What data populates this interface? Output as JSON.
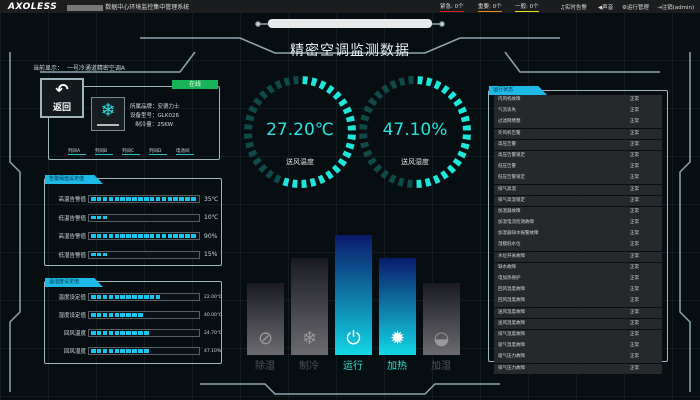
{
  "topbar": {
    "logo": "AXOLESS",
    "system_name": "数据中心环境监控集中管理系统",
    "alarms": [
      {
        "label": "紧急: 0个",
        "color": "#e01b1b"
      },
      {
        "label": "重要: 0个",
        "color": "#e98a16"
      },
      {
        "label": "一般: 0个",
        "color": "#e8dd17"
      }
    ],
    "nav": [
      "♫实时告警",
      "◀声音",
      "⚙运行管理",
      "⇥注销(admin)"
    ]
  },
  "title": "精密空调监测数据",
  "current": {
    "label": "当前显示：",
    "value": "一号冷通道精密空调A"
  },
  "device": {
    "back": "返回",
    "status": "在线",
    "status_color": "#19b35a",
    "brand_label": "所属品牌：",
    "brand": "安德力士",
    "model_label": "设备型号：",
    "model": "GLK026",
    "cap_label": "制冷量：",
    "capacity": "25KW",
    "tags": [
      "列间A",
      "列间B",
      "列间C",
      "列间D",
      "电池间"
    ]
  },
  "alarm_panel": {
    "title": "告警阈值设定值",
    "rows": [
      {
        "label": "高温告警值",
        "value": "35℃",
        "fill": 0.95
      },
      {
        "label": "低温告警值",
        "value": "10℃",
        "fill": 0.17
      },
      {
        "label": "高湿告警值",
        "value": "90%",
        "fill": 0.95
      },
      {
        "label": "低湿告警值",
        "value": "15%",
        "fill": 0.17
      }
    ]
  },
  "temp_panel": {
    "title": "温湿度设定值",
    "rows": [
      {
        "label": "温度设定值",
        "value": "22.00℃",
        "fill": 0.65
      },
      {
        "label": "湿度设定值",
        "value": "40.00℃",
        "fill": 0.45
      },
      {
        "label": "回风温度",
        "value": "24.70℃",
        "fill": 0.5
      },
      {
        "label": "回风湿度",
        "value": "47.10%",
        "fill": 0.5
      }
    ]
  },
  "gauges": [
    {
      "value": "27.20℃",
      "label": "送风温度",
      "fill": 0.55
    },
    {
      "value": "47.10%",
      "label": "送风湿度",
      "fill": 0.5
    }
  ],
  "modes": [
    {
      "label": "除湿",
      "icon": "dehumidify-icon",
      "active": false
    },
    {
      "label": "制冷",
      "icon": "snowflake-icon",
      "active": false
    },
    {
      "label": "运行",
      "icon": "power-icon",
      "active": true
    },
    {
      "label": "加热",
      "icon": "sun-icon",
      "active": true
    },
    {
      "label": "加湿",
      "icon": "droplet-icon",
      "active": false
    }
  ],
  "status_panel": {
    "title": "运行状态",
    "rows": [
      [
        "内风机故障",
        "正常"
      ],
      [
        "气流丢失",
        "正常"
      ],
      [
        "过滤网堵塞",
        "正常"
      ],
      [
        "外风机告警",
        "正常"
      ],
      [
        "高压告警",
        "正常"
      ],
      [
        "高压告警锁定",
        "正常"
      ],
      [
        "低压告警",
        "正常"
      ],
      [
        "低压告警锁定",
        "正常"
      ],
      [
        "排气高温",
        "正常"
      ],
      [
        "排气高温锁定",
        "正常"
      ],
      [
        "加湿器故障",
        "正常"
      ],
      [
        "加湿电流检测故障",
        "正常"
      ],
      [
        "加湿器缺水报警故障",
        "正常"
      ],
      [
        "湿膜低水位",
        "正常"
      ],
      [
        "水位开关故障",
        "正常"
      ],
      [
        "缺水故障",
        "正常"
      ],
      [
        "电加热保护",
        "正常"
      ],
      [
        "回风温度故障",
        "正常"
      ],
      [
        "回风湿度故障",
        "正常"
      ],
      [
        "送风温度故障",
        "正常"
      ],
      [
        "送风湿度故障",
        "正常"
      ],
      [
        "排气温度故障",
        "正常"
      ],
      [
        "吸气温度故障",
        "正常"
      ],
      [
        "吸气压力故障",
        "正常"
      ],
      [
        "排气压力故障",
        "正常"
      ]
    ]
  }
}
